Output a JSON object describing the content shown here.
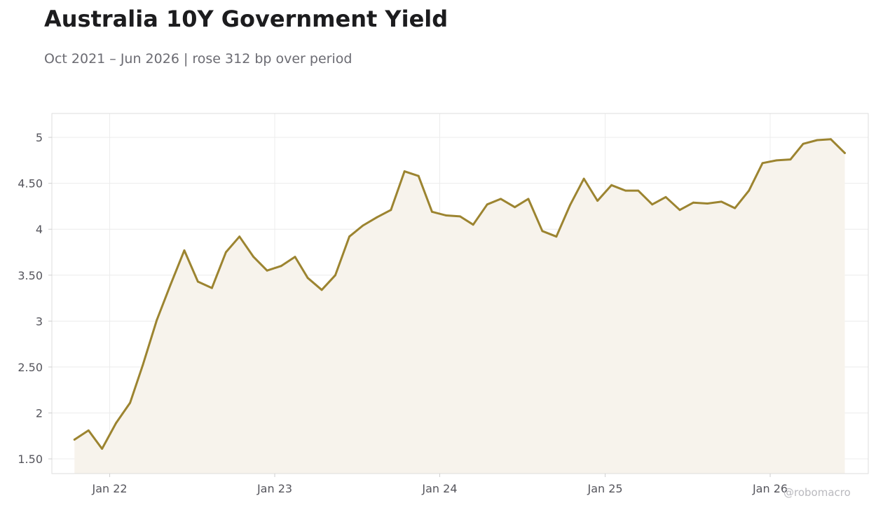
{
  "title": "Australia 10Y Government Yield",
  "subtitle": "Oct 2021 – Jun 2026 | rose 312 bp over period",
  "watermark": "@robomacro",
  "colors": {
    "line": "#9c8430",
    "area_fill": "#f7f3ec",
    "grid": "#ececec",
    "frame": "#dddddd",
    "tick_text": "#55555c",
    "title": "#1c1c1e",
    "subtitle": "#6b6b72",
    "watermark": "#b9b9be"
  },
  "chart_data": {
    "type": "area",
    "title": "Australia 10Y Government Yield",
    "subtitle": "Oct 2021 – Jun 2026 | rose 312 bp over period",
    "xlabel": "",
    "ylabel": "",
    "grid": true,
    "legend": "none",
    "ylim": [
      1.34,
      5.26
    ],
    "xlim": [
      "2021-08-26",
      "2026-08-06"
    ],
    "y_ticks": [
      1.5,
      2,
      2.5,
      3,
      3.5,
      4,
      4.5,
      5
    ],
    "y_tick_labels": [
      "1.50",
      "2",
      "2.50",
      "3",
      "3.50",
      "4",
      "4.50",
      "5"
    ],
    "x_ticks": [
      "2022-01-01",
      "2023-01-01",
      "2024-01-01",
      "2025-01-01",
      "2026-01-01"
    ],
    "x_tick_labels": [
      "Jan 22",
      "Jan 23",
      "Jan 24",
      "Jan 25",
      "Jan 26"
    ],
    "series": [
      {
        "x": [
          "2021-10",
          "2021-11",
          "2021-12",
          "2022-01",
          "2022-02",
          "2022-03",
          "2022-04",
          "2022-05",
          "2022-06",
          "2022-07",
          "2022-08",
          "2022-09",
          "2022-10",
          "2022-11",
          "2022-12",
          "2023-01",
          "2023-02",
          "2023-03",
          "2023-04",
          "2023-05",
          "2023-06",
          "2023-07",
          "2023-08",
          "2023-09",
          "2023-10",
          "2023-11",
          "2023-12",
          "2024-01",
          "2024-02",
          "2024-03",
          "2024-04",
          "2024-05",
          "2024-06",
          "2024-07",
          "2024-08",
          "2024-09",
          "2024-10",
          "2024-11",
          "2024-12",
          "2025-01",
          "2025-02",
          "2025-03",
          "2025-04",
          "2025-05",
          "2025-06",
          "2025-07",
          "2025-08",
          "2025-09",
          "2025-10",
          "2025-11",
          "2025-12",
          "2026-01",
          "2026-02",
          "2026-03",
          "2026-04",
          "2026-05",
          "2026-06"
        ],
        "values": [
          1.71,
          1.81,
          1.61,
          1.89,
          2.11,
          2.52,
          3.01,
          3.39,
          3.77,
          3.43,
          3.36,
          3.75,
          3.92,
          3.7,
          3.55,
          3.6,
          3.7,
          3.47,
          3.34,
          3.5,
          3.92,
          4.04,
          4.13,
          4.21,
          4.63,
          4.58,
          4.19,
          4.15,
          4.14,
          4.05,
          4.27,
          4.33,
          4.24,
          4.33,
          3.98,
          3.92,
          4.26,
          4.55,
          4.31,
          4.48,
          4.42,
          4.42,
          4.27,
          4.35,
          4.21,
          4.29,
          4.28,
          4.3,
          4.23,
          4.42,
          4.72,
          4.75,
          4.76,
          4.93,
          4.97,
          4.98,
          4.83
        ]
      }
    ]
  }
}
